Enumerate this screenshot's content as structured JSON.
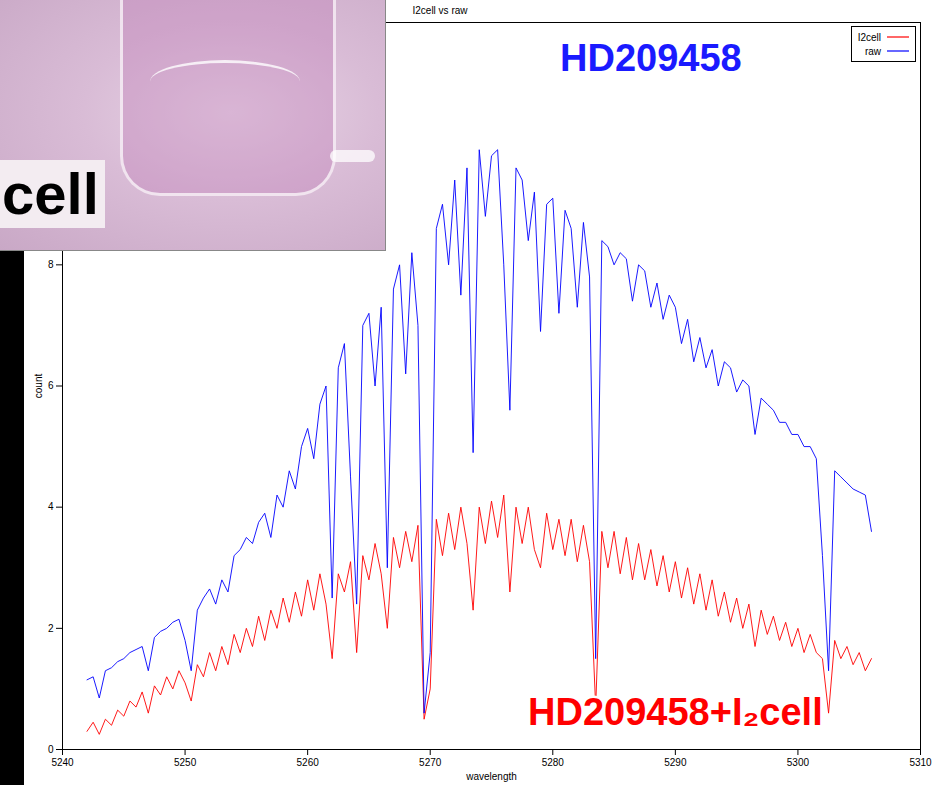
{
  "chart_data": {
    "type": "line",
    "title": "I2cell vs raw",
    "x_label": "wavelength",
    "y_label": "count",
    "photo_label": "cell",
    "xlim": [
      5240,
      5310
    ],
    "xticks": [
      5240,
      5250,
      5260,
      5270,
      5280,
      5290,
      5300,
      5310
    ],
    "ylim": [
      0,
      12
    ],
    "yticks": [
      0,
      2,
      4,
      6,
      8
    ],
    "legend": "top-right",
    "x": [
      5242,
      5242.5,
      5243,
      5243.5,
      5244,
      5244.5,
      5245,
      5245.5,
      5246,
      5246.5,
      5247,
      5247.5,
      5248,
      5248.5,
      5249,
      5249.5,
      5250,
      5250.5,
      5251,
      5251.5,
      5252,
      5252.5,
      5253,
      5253.5,
      5254,
      5254.5,
      5255,
      5255.5,
      5256,
      5256.5,
      5257,
      5257.5,
      5258,
      5258.5,
      5259,
      5259.5,
      5260,
      5260.5,
      5261,
      5261.5,
      5262,
      5262.5,
      5263,
      5263.5,
      5264,
      5264.5,
      5265,
      5265.5,
      5266,
      5266.5,
      5267,
      5267.5,
      5268,
      5268.5,
      5269,
      5269.5,
      5270,
      5270.5,
      5271,
      5271.5,
      5272,
      5272.5,
      5273,
      5273.5,
      5274,
      5274.5,
      5275,
      5275.5,
      5276,
      5276.5,
      5277,
      5277.5,
      5278,
      5278.5,
      5279,
      5279.5,
      5280,
      5280.5,
      5281,
      5281.5,
      5282,
      5282.5,
      5283,
      5283.5,
      5284,
      5284.5,
      5285,
      5285.5,
      5286,
      5286.5,
      5287,
      5287.5,
      5288,
      5288.5,
      5289,
      5289.5,
      5290,
      5290.5,
      5291,
      5291.5,
      5292,
      5292.5,
      5293,
      5293.5,
      5294,
      5294.5,
      5295,
      5295.5,
      5296,
      5296.5,
      5297,
      5297.5,
      5298,
      5298.5,
      5299,
      5299.5,
      5300,
      5300.5,
      5301,
      5301.5,
      5302,
      5302.5,
      5303,
      5303.5,
      5304,
      5304.5,
      5305,
      5305.5,
      5306
    ],
    "series": [
      {
        "name": "I2cell",
        "color": "#ff0000",
        "values": [
          0.3,
          0.45,
          0.25,
          0.5,
          0.4,
          0.65,
          0.55,
          0.8,
          0.7,
          0.95,
          0.6,
          1.05,
          0.9,
          1.2,
          1.0,
          1.3,
          1.1,
          0.8,
          1.4,
          1.2,
          1.6,
          1.3,
          1.7,
          1.4,
          1.9,
          1.6,
          2.0,
          1.7,
          2.2,
          1.8,
          2.3,
          2.0,
          2.5,
          2.1,
          2.6,
          2.2,
          2.8,
          2.3,
          2.9,
          2.4,
          1.5,
          2.9,
          2.6,
          3.1,
          1.6,
          3.2,
          2.8,
          3.4,
          2.9,
          2.0,
          3.5,
          3.0,
          3.6,
          3.1,
          3.7,
          0.5,
          1.0,
          3.8,
          3.2,
          3.9,
          3.3,
          4.0,
          3.4,
          2.3,
          4.0,
          3.4,
          4.1,
          3.5,
          4.2,
          2.6,
          4.0,
          3.4,
          4.0,
          3.3,
          3.0,
          3.9,
          3.3,
          3.8,
          3.2,
          3.8,
          3.1,
          3.7,
          3.1,
          0.7,
          3.6,
          3.0,
          3.6,
          2.9,
          3.5,
          2.8,
          3.4,
          2.8,
          3.3,
          2.7,
          3.2,
          2.6,
          3.1,
          2.5,
          3.0,
          2.4,
          2.9,
          2.3,
          2.8,
          2.2,
          2.6,
          2.1,
          2.5,
          2.0,
          2.4,
          1.7,
          2.3,
          1.9,
          2.2,
          1.8,
          2.1,
          1.7,
          2.0,
          1.6,
          1.9,
          1.6,
          1.5,
          0.6,
          1.8,
          1.5,
          1.7,
          1.4,
          1.6,
          1.3,
          1.5
        ]
      },
      {
        "name": "raw",
        "color": "#0000ff",
        "values": [
          1.15,
          1.2,
          0.85,
          1.3,
          1.35,
          1.45,
          1.5,
          1.6,
          1.65,
          1.7,
          1.3,
          1.85,
          1.95,
          2.0,
          2.1,
          2.15,
          1.8,
          1.3,
          2.3,
          2.5,
          2.65,
          2.4,
          2.8,
          2.6,
          3.2,
          3.3,
          3.5,
          3.4,
          3.75,
          3.9,
          3.5,
          4.2,
          4.0,
          4.6,
          4.3,
          5.0,
          5.3,
          4.8,
          5.7,
          6.0,
          2.5,
          6.3,
          6.7,
          4.5,
          2.4,
          7.0,
          7.2,
          6.0,
          7.3,
          3.0,
          7.6,
          8.0,
          6.2,
          8.2,
          7.0,
          0.6,
          1.6,
          8.6,
          9.0,
          8.0,
          9.4,
          7.5,
          9.6,
          4.9,
          9.9,
          8.8,
          9.8,
          9.9,
          8.0,
          5.6,
          9.6,
          9.4,
          8.4,
          9.2,
          6.9,
          9.0,
          9.1,
          7.2,
          8.9,
          8.6,
          7.3,
          8.7,
          7.8,
          1.5,
          8.4,
          8.3,
          8.0,
          8.2,
          8.1,
          7.4,
          8.0,
          7.9,
          7.3,
          7.7,
          7.1,
          7.5,
          7.3,
          6.7,
          7.1,
          6.4,
          6.8,
          6.3,
          6.6,
          6.0,
          6.4,
          6.3,
          5.9,
          6.1,
          6.0,
          5.2,
          5.8,
          5.7,
          5.6,
          5.4,
          5.4,
          5.2,
          5.2,
          5.0,
          5.0,
          4.8,
          3.2,
          1.3,
          4.6,
          4.5,
          4.4,
          4.3,
          4.25,
          4.2,
          3.6
        ]
      }
    ],
    "annotations": [
      {
        "text": "HD209458",
        "x": 5288,
        "y": 11.4,
        "color": "#1a1aff"
      },
      {
        "text": "HD209458+I₂cell",
        "x": 5290,
        "y": 0.6,
        "color": "#ff0000"
      }
    ]
  }
}
